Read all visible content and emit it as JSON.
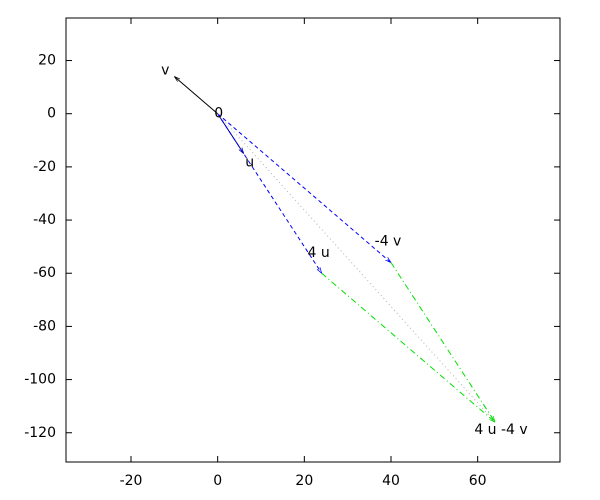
{
  "chart_data": {
    "type": "vector",
    "xlim": [
      -35,
      79
    ],
    "ylim": [
      -131,
      36
    ],
    "xticks": [
      -20,
      0,
      20,
      40,
      60
    ],
    "yticks": [
      20,
      0,
      -20,
      -40,
      -60,
      -80,
      -100,
      -120
    ],
    "points": [
      {
        "label": "0",
        "x": 0,
        "y": 0
      },
      {
        "label": "u",
        "x": 6,
        "y": -15
      },
      {
        "label": "v",
        "x": -10,
        "y": 14
      },
      {
        "label": "4 u",
        "x": 24,
        "y": -60
      },
      {
        "label": "-4 v",
        "x": 40,
        "y": -56
      },
      {
        "label": "4 u -4 v",
        "x": 64,
        "y": -116
      }
    ],
    "segments": [
      {
        "from": "0",
        "to": "u",
        "color": "#000080",
        "style": "solid",
        "arrow": true
      },
      {
        "from": "0",
        "to": "v",
        "color": "#000000",
        "style": "solid",
        "arrow": true
      },
      {
        "from": "0",
        "to": "4 u",
        "color": "#0000ff",
        "style": "dashed",
        "arrow": true
      },
      {
        "from": "0",
        "to": "-4 v",
        "color": "#0000ff",
        "style": "dashed",
        "arrow": true
      },
      {
        "from": "4 u",
        "to": "4 u -4 v",
        "color": "#00e000",
        "style": "dashdot",
        "arrow": true
      },
      {
        "from": "-4 v",
        "to": "4 u -4 v",
        "color": "#00e000",
        "style": "dashdot",
        "arrow": true
      },
      {
        "from": "0",
        "to": "4 u -4 v",
        "color": "#b0b0b0",
        "style": "dotted",
        "arrow": false
      }
    ]
  }
}
